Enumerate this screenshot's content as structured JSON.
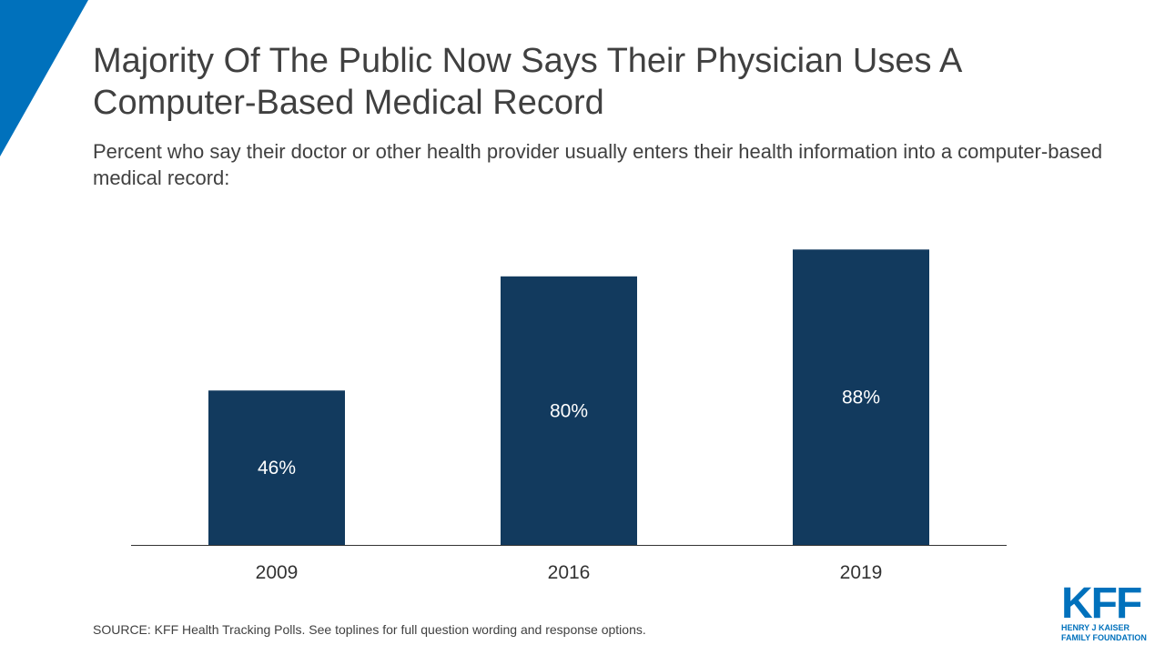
{
  "title": "Majority Of The Public Now Says Their Physician Uses A Computer-Based Medical Record",
  "subtitle": "Percent who say their doctor or other health provider usually enters their health information into a computer-based medical record:",
  "source": "SOURCE: KFF Health Tracking Polls. See toplines for full question wording and response options.",
  "logo": {
    "mark": "KFF",
    "line1": "HENRY J KAISER",
    "line2": "FAMILY FOUNDATION"
  },
  "colors": {
    "bar": "#123a5e",
    "accent": "#0071bc",
    "axis": "#333333",
    "bar_label": "#ffffff"
  },
  "chart_data": {
    "type": "bar",
    "categories": [
      "2009",
      "2016",
      "2019"
    ],
    "values": [
      46,
      80,
      88
    ],
    "value_labels": [
      "46%",
      "80%",
      "88%"
    ],
    "ylim": [
      0,
      100
    ],
    "grid": false,
    "legend": "none"
  }
}
